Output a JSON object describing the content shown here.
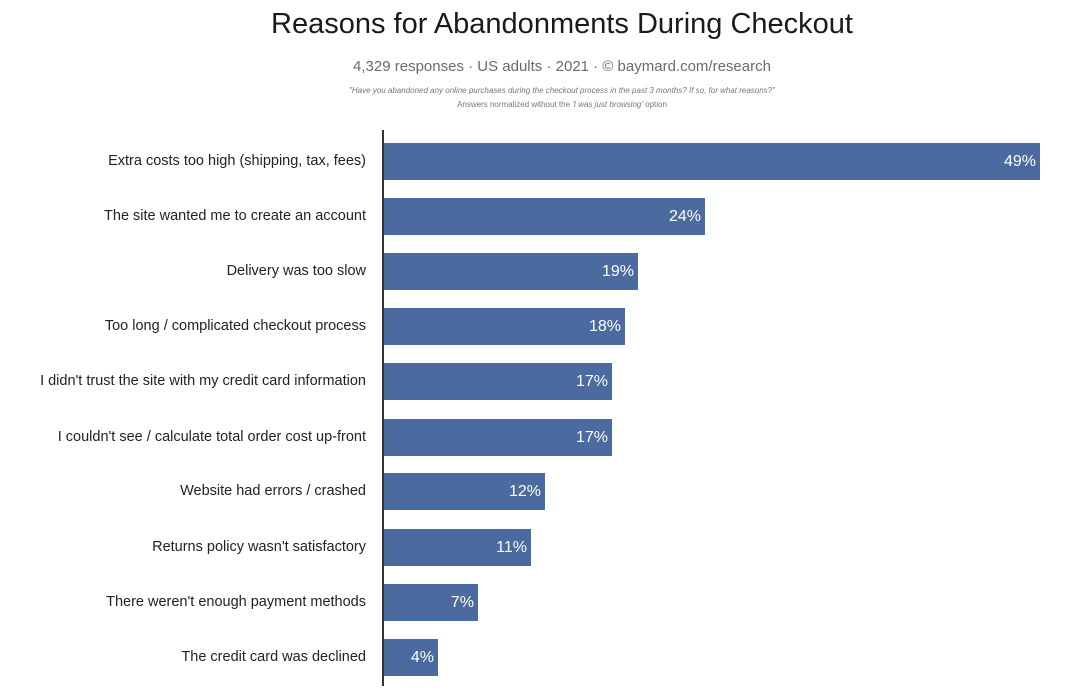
{
  "header": {
    "title": "Reasons for Abandonments During Checkout",
    "subtitle": "4,329 responses  ·  US adults  ·  2021  ·  ©  baymard.com/research",
    "question": "\"Have you abandoned any online purchases during the checkout process in the past 3 months? If so, for what reasons?\"",
    "note_prefix": "Answers normalized without the ",
    "note_italic": "'I was just browsing'",
    "note_suffix": " option"
  },
  "colors": {
    "bar": "#4b6a9f",
    "value_text": "#ffffff",
    "axis": "#333333"
  },
  "chart_data": {
    "type": "bar",
    "orientation": "horizontal",
    "title": "Reasons for Abandonments During Checkout",
    "subtitle": "4,329 responses · US adults · 2021 · © baymard.com/research",
    "xlabel": "",
    "ylabel": "",
    "xlim": [
      0,
      49
    ],
    "grid": false,
    "legend": null,
    "categories": [
      "Extra costs too high (shipping, tax, fees)",
      "The site wanted me to create an account",
      "Delivery was too slow",
      "Too long / complicated checkout process",
      "I didn't trust the site with my credit card information",
      "I couldn't see / calculate total order cost up-front",
      "Website had errors / crashed",
      "Returns policy wasn't satisfactory",
      "There weren't enough payment methods",
      "The credit card was declined"
    ],
    "values": [
      49,
      24,
      19,
      18,
      17,
      17,
      12,
      11,
      7,
      4
    ],
    "value_labels": [
      "49%",
      "24%",
      "19%",
      "18%",
      "17%",
      "17%",
      "12%",
      "11%",
      "7%",
      "4%"
    ]
  }
}
